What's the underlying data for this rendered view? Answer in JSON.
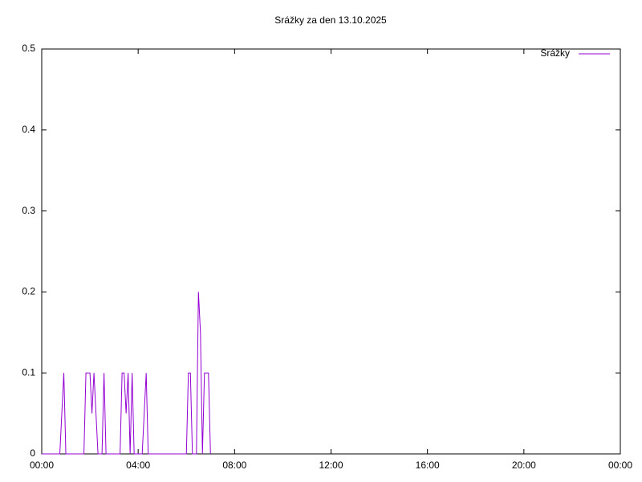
{
  "chart_data": {
    "type": "line",
    "title": "Srážky za den 13.10.2025",
    "x": [
      0,
      5,
      10,
      15,
      20,
      25,
      30,
      35,
      40,
      45,
      50,
      55,
      60,
      65,
      70,
      75,
      80,
      85,
      90,
      95,
      100,
      105,
      110,
      115,
      120,
      125,
      130,
      135,
      140,
      145,
      150,
      155,
      160,
      165,
      170,
      175,
      180,
      185,
      190,
      195,
      200,
      205,
      210,
      215,
      220,
      225,
      230,
      235,
      240,
      245,
      250,
      255,
      260,
      265,
      270,
      275,
      280,
      285,
      290,
      295,
      300,
      305,
      310,
      315,
      320,
      325,
      330,
      335,
      340,
      345,
      350,
      355,
      360,
      365,
      370,
      375,
      380,
      385,
      390,
      395,
      400,
      405,
      410,
      415,
      420
    ],
    "series": [
      {
        "name": "Srážky",
        "color": "#9400d3",
        "values": [
          0,
          0,
          0,
          0,
          0,
          0,
          0,
          0,
          0,
          0,
          0.05,
          0.1,
          0,
          0,
          0,
          0,
          0,
          0,
          0,
          0,
          0,
          0,
          0.1,
          0.1,
          0.1,
          0.05,
          0.1,
          0.05,
          0,
          0,
          0,
          0.1,
          0,
          0,
          0,
          0,
          0,
          0,
          0,
          0,
          0.1,
          0.1,
          0.05,
          0.1,
          0,
          0.1,
          0,
          0,
          0,
          0,
          0,
          0.05,
          0.1,
          0,
          0,
          0,
          0,
          0,
          0,
          0,
          0,
          0,
          0,
          0,
          0,
          0,
          0,
          0,
          0,
          0,
          0,
          0,
          0,
          0.1,
          0.1,
          0,
          0,
          0,
          0.2,
          0.15,
          0,
          0.1,
          0.1,
          0.1,
          0
        ]
      }
    ],
    "xlim": [
      0,
      1440
    ],
    "xticks": [
      {
        "value": 0,
        "label": "00:00"
      },
      {
        "value": 240,
        "label": "04:00"
      },
      {
        "value": 480,
        "label": "08:00"
      },
      {
        "value": 720,
        "label": "12:00"
      },
      {
        "value": 960,
        "label": "16:00"
      },
      {
        "value": 1200,
        "label": "20:00"
      },
      {
        "value": 1440,
        "label": "00:00"
      }
    ],
    "ylim": [
      0,
      0.5
    ],
    "yticks": [
      0,
      0.1,
      0.2,
      0.3,
      0.4,
      0.5
    ],
    "legend": "top-right",
    "grid": false
  }
}
